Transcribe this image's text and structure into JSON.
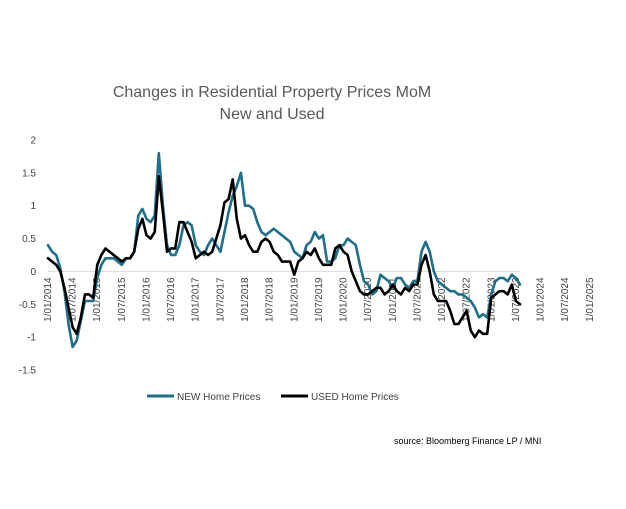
{
  "chart_data": {
    "type": "line",
    "title": "Changes in Residential Property Prices MoM",
    "subtitle": "New and Used",
    "xlabel": "",
    "ylabel": "",
    "ylim": [
      -1.5,
      2
    ],
    "y_ticks": [
      "2",
      "1.5",
      "1",
      "0.5",
      "0",
      "-0.5",
      "-1",
      "-1.5"
    ],
    "x_ticks": [
      "1/01/2014",
      "1/07/2014",
      "1/01/2015",
      "1/07/2015",
      "1/01/2016",
      "1/07/2016",
      "1/01/2017",
      "1/07/2017",
      "1/01/2018",
      "1/07/2018",
      "1/01/2019",
      "1/07/2019",
      "1/01/2020",
      "1/07/2020",
      "1/01/2021",
      "1/07/2021",
      "1/01/2022",
      "1/07/2022",
      "1/01/2023",
      "1/07/2023",
      "1/01/2024",
      "1/07/2024",
      "1/01/2025"
    ],
    "grid": false,
    "legend_position": "bottom",
    "x_start": "2014-01",
    "series": [
      {
        "name": "NEW Home Prices",
        "color": "#1F6E8C",
        "values": [
          0.4,
          0.3,
          0.25,
          0.05,
          -0.3,
          -0.8,
          -1.15,
          -1.05,
          -0.75,
          -0.45,
          -0.45,
          -0.45,
          -0.1,
          0.1,
          0.2,
          0.2,
          0.2,
          0.15,
          0.1,
          0.2,
          0.2,
          0.3,
          0.85,
          0.95,
          0.8,
          0.75,
          0.85,
          1.8,
          1.0,
          0.4,
          0.25,
          0.25,
          0.4,
          0.7,
          0.75,
          0.7,
          0.4,
          0.3,
          0.25,
          0.4,
          0.5,
          0.4,
          0.3,
          0.6,
          0.9,
          1.15,
          1.3,
          1.5,
          1.0,
          1.0,
          0.95,
          0.75,
          0.6,
          0.55,
          0.6,
          0.65,
          0.6,
          0.55,
          0.5,
          0.45,
          0.3,
          0.25,
          0.2,
          0.4,
          0.45,
          0.6,
          0.5,
          0.55,
          0.15,
          0.15,
          0.2,
          0.4,
          0.4,
          0.5,
          0.45,
          0.4,
          0.1,
          -0.15,
          -0.2,
          -0.35,
          -0.3,
          -0.05,
          -0.1,
          -0.15,
          -0.25,
          -0.1,
          -0.1,
          -0.2,
          -0.25,
          -0.15,
          -0.15,
          0.3,
          0.45,
          0.3,
          0.0,
          -0.15,
          -0.2,
          -0.25,
          -0.3,
          -0.3,
          -0.35,
          -0.35,
          -0.4,
          -0.45,
          -0.55,
          -0.7,
          -0.65,
          -0.7,
          -0.35,
          -0.15,
          -0.1,
          -0.1,
          -0.15,
          -0.05,
          -0.1,
          -0.2
        ]
      },
      {
        "name": "USED Home Prices",
        "color": "#000000",
        "values": [
          0.2,
          0.15,
          0.1,
          0.0,
          -0.25,
          -0.55,
          -0.85,
          -0.95,
          -0.7,
          -0.35,
          -0.35,
          -0.4,
          0.1,
          0.25,
          0.35,
          0.3,
          0.25,
          0.2,
          0.15,
          0.2,
          0.2,
          0.3,
          0.65,
          0.8,
          0.55,
          0.5,
          0.6,
          1.45,
          0.9,
          0.3,
          0.35,
          0.35,
          0.75,
          0.75,
          0.6,
          0.45,
          0.2,
          0.25,
          0.3,
          0.25,
          0.3,
          0.5,
          0.7,
          1.05,
          1.1,
          1.4,
          0.8,
          0.5,
          0.55,
          0.4,
          0.3,
          0.3,
          0.45,
          0.5,
          0.45,
          0.3,
          0.25,
          0.15,
          0.15,
          0.15,
          -0.05,
          0.15,
          0.2,
          0.3,
          0.25,
          0.35,
          0.2,
          0.1,
          0.1,
          0.1,
          0.35,
          0.4,
          0.3,
          0.25,
          0.0,
          -0.15,
          -0.3,
          -0.35,
          -0.35,
          -0.3,
          -0.25,
          -0.25,
          -0.35,
          -0.3,
          -0.2,
          -0.3,
          -0.35,
          -0.25,
          -0.3,
          -0.2,
          -0.2,
          0.1,
          0.25,
          0.0,
          -0.35,
          -0.45,
          -0.45,
          -0.45,
          -0.6,
          -0.8,
          -0.8,
          -0.7,
          -0.6,
          -0.9,
          -1.0,
          -0.9,
          -0.95,
          -0.95,
          -0.4,
          -0.35,
          -0.3,
          -0.3,
          -0.35,
          -0.2,
          -0.45,
          -0.5
        ]
      }
    ]
  },
  "source_text": "source: Bloomberg Finance LP / MNI"
}
